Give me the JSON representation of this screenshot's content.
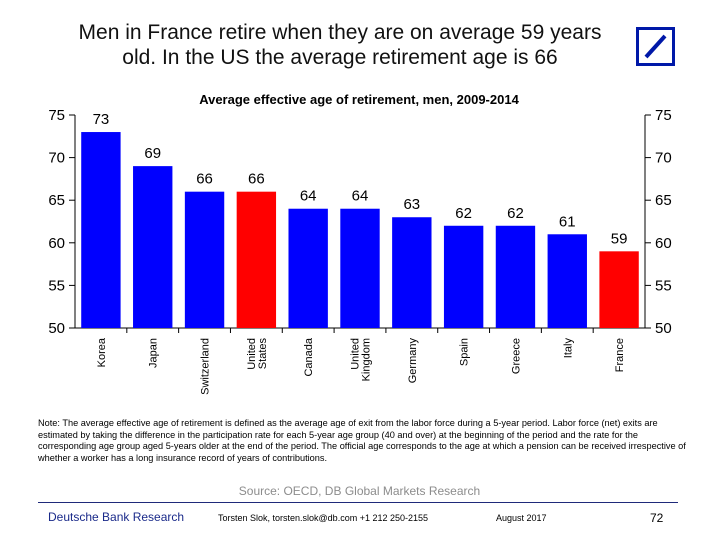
{
  "headline": "Men in France retire when they are on average 59 years old. In the US the average retirement age is 66",
  "logo": {
    "name": "deutsche-bank-logo",
    "color": "#0018a8"
  },
  "chart_data": {
    "type": "bar",
    "title": "Average effective age of retirement, men, 2009-2014",
    "categories": [
      "Korea",
      "Japan",
      "Switzerland",
      "United States",
      "Canada",
      "United Kingdom",
      "Germany",
      "Spain",
      "Greece",
      "Italy",
      "France"
    ],
    "values": [
      73,
      69,
      66,
      66,
      64,
      64,
      63,
      62,
      62,
      61,
      59
    ],
    "data_labels": [
      "73",
      "69",
      "66",
      "66",
      "64",
      "64",
      "63",
      "62",
      "62",
      "61",
      "59"
    ],
    "bar_colors": [
      "#0000ff",
      "#0000ff",
      "#0000ff",
      "#ff0000",
      "#0000ff",
      "#0000ff",
      "#0000ff",
      "#0000ff",
      "#0000ff",
      "#0000ff",
      "#ff0000"
    ],
    "ylim": [
      50,
      75
    ],
    "yticks": [
      50,
      55,
      60,
      65,
      70,
      75
    ],
    "xlabel": "",
    "ylabel": "",
    "grid": false,
    "legend": "none",
    "axes": "left-and-right"
  },
  "note": "Note: The average effective age of retirement is defined as the average age of exit from the labor force during a 5-year period. Labor force (net) exits are estimated by taking the difference in the participation rate for each 5-year age group (40 and over) at the beginning of the period and the rate for the corresponding age group aged 5-years older at the end of the period. The official age corresponds to the age at which a pension can be received irrespective of whether a worker has a long insurance record of years of contributions.",
  "source": "Source: OECD, DB Global Markets Research",
  "footer": {
    "brand": "Deutsche Bank Research",
    "contact": "Torsten Slok, torsten.slok@db.com  +1 212 250-2155",
    "date": "August  2017",
    "page": "72"
  }
}
